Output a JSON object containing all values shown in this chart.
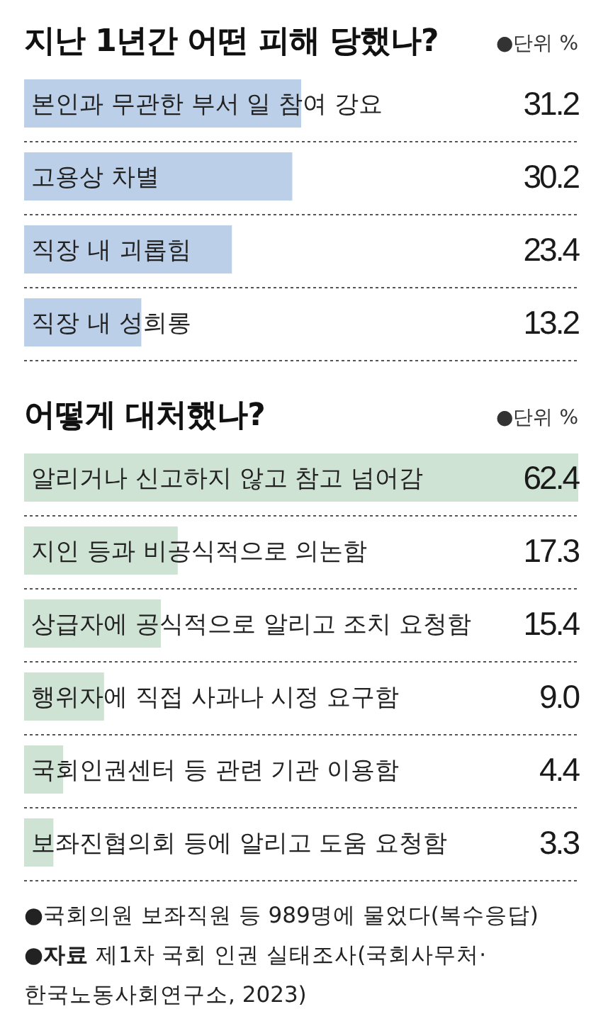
{
  "chart_data": [
    {
      "type": "bar",
      "orientation": "horizontal",
      "title": "지난 1년간 어떤 피해 당했나?",
      "annotations": [
        "●단위 %"
      ],
      "categories": [
        "본인과 무관한 부서 일 참여 강요",
        "고용상 차별",
        "직장 내 괴롭힘",
        "직장 내 성희롱"
      ],
      "values": [
        31.2,
        30.2,
        23.4,
        13.2
      ],
      "value_labels": [
        "31.2",
        "30.2",
        "23.4",
        "13.2"
      ],
      "color": "#bccfe9"
    },
    {
      "type": "bar",
      "orientation": "horizontal",
      "title": "어떻게 대처했나?",
      "annotations": [
        "●단위 %",
        "●국회의원 보좌직원 등 989명에 물었다(복수응답)",
        "●자료 제1차 국회 인권 실태조사(국회사무처·한국노동사회연구소, 2023)"
      ],
      "categories": [
        "알리거나 신고하지 않고 참고 넘어감",
        "지인 등과 비공식적으로 의논함",
        "상급자에 공식적으로 알리고 조치 요청함",
        "행위자에 직접 사과나 시정 요구함",
        "국회인권센터 등 관련 기관 이용함",
        "보좌진협의회 등에 알리고 도움 요청함"
      ],
      "values": [
        62.4,
        17.3,
        15.4,
        9.0,
        4.4,
        3.3
      ],
      "value_labels": [
        "62.4",
        "17.3",
        "15.4",
        "9.0",
        "4.4",
        "3.3"
      ],
      "color": "#cfe3d5"
    }
  ]
}
